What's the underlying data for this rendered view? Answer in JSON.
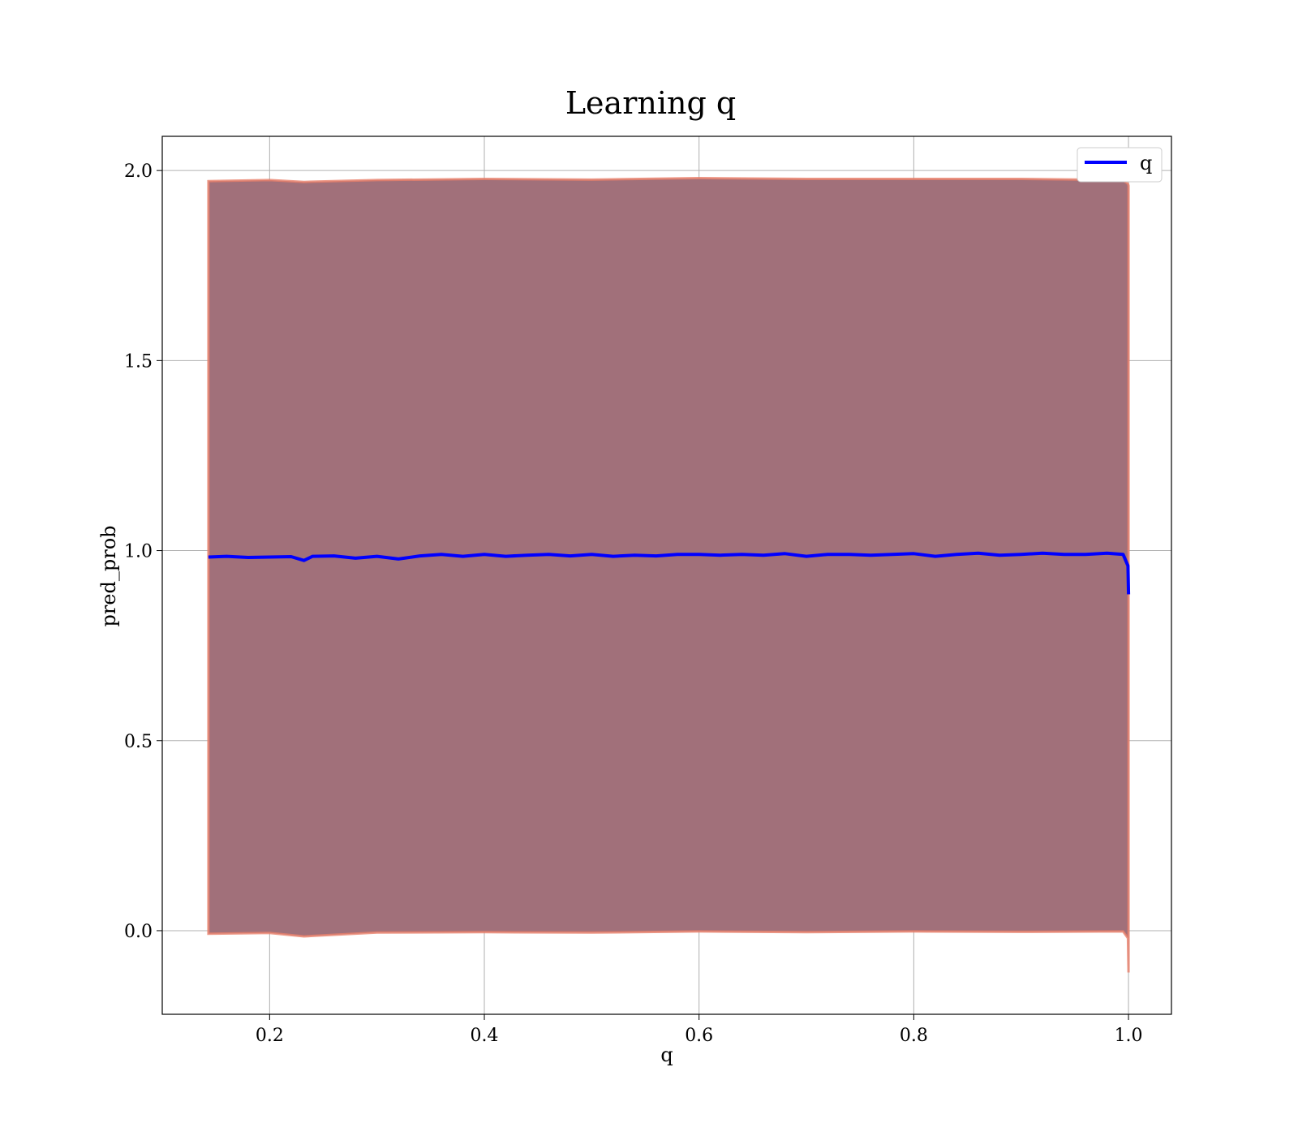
{
  "chart_data": {
    "type": "line",
    "title": "Learning q",
    "xlabel": "q",
    "ylabel": "pred_prob",
    "xlim": [
      0.1,
      1.04
    ],
    "ylim": [
      -0.22,
      2.09
    ],
    "xticks": [
      0.2,
      0.4,
      0.6,
      0.8,
      1.0
    ],
    "xtick_labels": [
      "0.2",
      "0.4",
      "0.6",
      "0.8",
      "1.0"
    ],
    "yticks": [
      0.0,
      0.5,
      1.0,
      1.5,
      2.0
    ],
    "ytick_labels": [
      "0.0",
      "0.5",
      "1.0",
      "1.5",
      "2.0"
    ],
    "grid": true,
    "legend": {
      "position": "top-right",
      "entries": [
        "q"
      ]
    },
    "series": [
      {
        "name": "q",
        "color": "#0000ff",
        "x": [
          0.143,
          0.16,
          0.18,
          0.2,
          0.22,
          0.232,
          0.24,
          0.26,
          0.28,
          0.3,
          0.32,
          0.34,
          0.36,
          0.38,
          0.4,
          0.42,
          0.44,
          0.46,
          0.48,
          0.5,
          0.52,
          0.54,
          0.56,
          0.58,
          0.6,
          0.62,
          0.64,
          0.66,
          0.68,
          0.7,
          0.72,
          0.74,
          0.76,
          0.78,
          0.8,
          0.82,
          0.84,
          0.86,
          0.88,
          0.9,
          0.92,
          0.94,
          0.96,
          0.98,
          0.995,
          0.9995,
          1.0
        ],
        "y": [
          0.983,
          0.985,
          0.982,
          0.983,
          0.984,
          0.974,
          0.985,
          0.986,
          0.98,
          0.985,
          0.978,
          0.986,
          0.99,
          0.985,
          0.99,
          0.985,
          0.988,
          0.99,
          0.986,
          0.99,
          0.985,
          0.988,
          0.986,
          0.99,
          0.99,
          0.988,
          0.99,
          0.988,
          0.992,
          0.985,
          0.99,
          0.99,
          0.988,
          0.99,
          0.992,
          0.985,
          0.99,
          0.993,
          0.988,
          0.99,
          0.993,
          0.99,
          0.99,
          0.993,
          0.99,
          0.96,
          0.885
        ]
      },
      {
        "name": "",
        "type": "band",
        "color": "#a1707a",
        "edge_color": "#e8806a",
        "x": [
          0.143,
          0.2,
          0.232,
          0.3,
          0.4,
          0.5,
          0.6,
          0.7,
          0.8,
          0.9,
          0.995,
          0.9995,
          1.0
        ],
        "upper": [
          1.972,
          1.975,
          1.97,
          1.975,
          1.978,
          1.976,
          1.98,
          1.978,
          1.978,
          1.978,
          1.975,
          1.965,
          1.96
        ],
        "lower": [
          -0.008,
          -0.006,
          -0.015,
          -0.005,
          -0.004,
          -0.005,
          -0.002,
          -0.004,
          -0.002,
          -0.003,
          -0.002,
          -0.02,
          -0.11
        ]
      }
    ]
  }
}
